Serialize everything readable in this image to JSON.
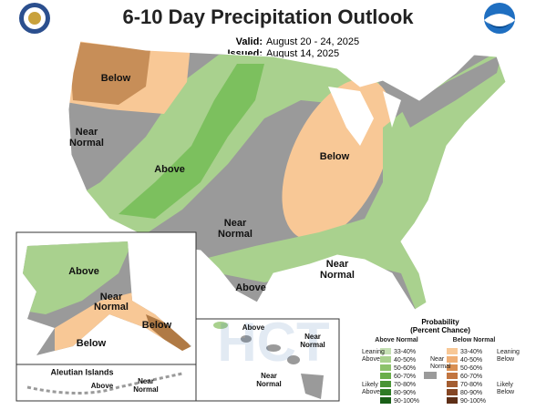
{
  "header": {
    "title": "6-10 Day Precipitation Outlook",
    "valid_label": "Valid:",
    "valid": "August 20 - 24, 2025",
    "issued_label": "Issued:",
    "issued": "August 14, 2025"
  },
  "conus_labels": [
    [
      "Below"
    ],
    [
      "Near",
      "Normal"
    ],
    [
      "Above"
    ],
    [
      "Below"
    ],
    [
      "Near",
      "Normal"
    ],
    [
      "Near",
      "Normal"
    ],
    [
      "Above"
    ]
  ],
  "alaska_labels": [
    [
      "Above"
    ],
    [
      "Near",
      "Normal"
    ],
    [
      "Below"
    ],
    [
      "Below"
    ]
  ],
  "aleutian": {
    "title": "Aleutian Islands",
    "labels": [
      [
        "Above"
      ],
      [
        "Near",
        "Normal"
      ]
    ]
  },
  "hawaii_labels": [
    [
      "Above"
    ],
    [
      "Near",
      "Normal"
    ],
    [
      "Near",
      "Normal"
    ]
  ],
  "watermark": "HCT",
  "legend": {
    "title": "Probability",
    "subtitle": "(Percent Chance)",
    "above_header": "Above Normal",
    "near_header": [
      "Near",
      "Normal"
    ],
    "below_header": "Below Normal",
    "above_ranges": [
      "33-40%",
      "40-50%",
      "50-60%",
      "60-70%",
      "70-80%",
      "80-90%",
      "90-100%"
    ],
    "below_ranges": [
      "33-40%",
      "40-50%",
      "50-60%",
      "60-70%",
      "70-80%",
      "80-90%",
      "90-100%"
    ],
    "leaning_above": [
      "Leaning",
      "Above"
    ],
    "likely_above": [
      "Likely",
      "Above"
    ],
    "leaning_below": [
      "Leaning",
      "Below"
    ],
    "likely_below": [
      "Likely",
      "Below"
    ]
  }
}
